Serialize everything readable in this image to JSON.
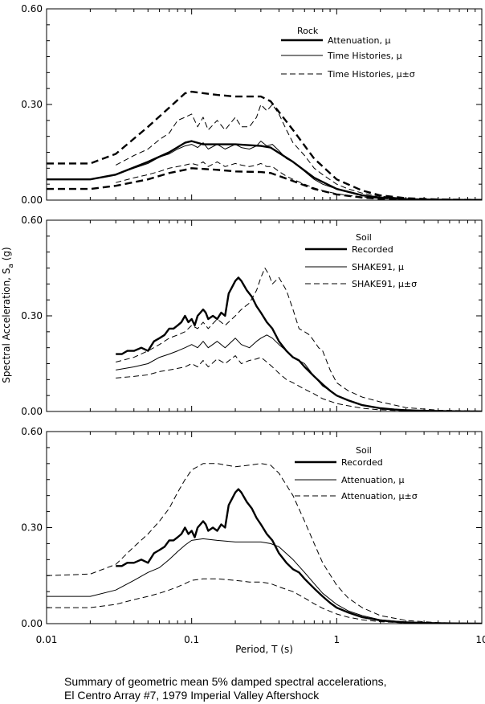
{
  "chart_data": [
    {
      "type": "line",
      "x_scale": "log",
      "xlim": [
        0.01,
        10
      ],
      "ylim": [
        0,
        0.6
      ],
      "yticks": [
        "0.00",
        "0.30",
        "0.60"
      ],
      "legend": {
        "heading": "Rock",
        "placement": "top-right",
        "entries": [
          "Attenuation, μ",
          "Time Histories, μ",
          "Time Histories, μ±σ"
        ]
      },
      "series": [
        {
          "name": "Attenuation, μ",
          "style": "thick-solid",
          "x": [
            0.01,
            0.02,
            0.03,
            0.05,
            0.07,
            0.09,
            0.1,
            0.12,
            0.15,
            0.2,
            0.3,
            0.35,
            0.5,
            0.7,
            1,
            1.5,
            2,
            3,
            5,
            10
          ],
          "y": [
            0.065,
            0.065,
            0.08,
            0.12,
            0.15,
            0.18,
            0.185,
            0.175,
            0.175,
            0.175,
            0.17,
            0.165,
            0.12,
            0.07,
            0.035,
            0.015,
            0.008,
            0.003,
            0.001,
            0.0003
          ]
        },
        {
          "name": "Attenuation, μ±σ (upper)",
          "style": "thick-dashed",
          "x": [
            0.01,
            0.02,
            0.03,
            0.05,
            0.07,
            0.09,
            0.1,
            0.15,
            0.2,
            0.3,
            0.35,
            0.5,
            0.7,
            1,
            1.5,
            2,
            3,
            5,
            10
          ],
          "y": [
            0.115,
            0.115,
            0.145,
            0.23,
            0.29,
            0.335,
            0.34,
            0.33,
            0.325,
            0.325,
            0.31,
            0.22,
            0.13,
            0.065,
            0.03,
            0.015,
            0.006,
            0.002,
            0.0005
          ]
        },
        {
          "name": "Attenuation, μ±σ (lower)",
          "style": "thick-dashed",
          "x": [
            0.01,
            0.02,
            0.03,
            0.05,
            0.07,
            0.09,
            0.1,
            0.15,
            0.2,
            0.3,
            0.35,
            0.5,
            0.7,
            1,
            1.5,
            2,
            3,
            5,
            10
          ],
          "y": [
            0.035,
            0.035,
            0.045,
            0.065,
            0.085,
            0.095,
            0.1,
            0.095,
            0.09,
            0.088,
            0.085,
            0.06,
            0.035,
            0.018,
            0.008,
            0.004,
            0.0015,
            0.0005,
            0.0001
          ]
        },
        {
          "name": "Time Histories, μ",
          "style": "thin-solid",
          "x": [
            0.03,
            0.04,
            0.05,
            0.06,
            0.07,
            0.08,
            0.09,
            0.1,
            0.11,
            0.12,
            0.13,
            0.15,
            0.17,
            0.2,
            0.22,
            0.25,
            0.28,
            0.3,
            0.33,
            0.36,
            0.4,
            0.45,
            0.5,
            0.6,
            0.7,
            0.8,
            1,
            1.2,
            1.5,
            2,
            3
          ],
          "y": [
            0.08,
            0.1,
            0.115,
            0.135,
            0.145,
            0.16,
            0.17,
            0.175,
            0.165,
            0.18,
            0.16,
            0.175,
            0.16,
            0.175,
            0.165,
            0.16,
            0.17,
            0.185,
            0.17,
            0.175,
            0.155,
            0.13,
            0.12,
            0.09,
            0.065,
            0.05,
            0.035,
            0.025,
            0.015,
            0.008,
            0.003
          ]
        },
        {
          "name": "Time Histories, μ±σ (upper)",
          "style": "thin-dashed",
          "x": [
            0.03,
            0.04,
            0.05,
            0.06,
            0.07,
            0.08,
            0.09,
            0.1,
            0.11,
            0.12,
            0.13,
            0.15,
            0.17,
            0.2,
            0.22,
            0.25,
            0.28,
            0.3,
            0.33,
            0.36,
            0.4,
            0.45,
            0.5,
            0.6,
            0.7,
            0.8,
            1,
            1.2,
            1.5,
            2,
            3
          ],
          "y": [
            0.11,
            0.14,
            0.16,
            0.19,
            0.21,
            0.25,
            0.26,
            0.27,
            0.23,
            0.26,
            0.22,
            0.25,
            0.22,
            0.26,
            0.23,
            0.23,
            0.26,
            0.3,
            0.28,
            0.3,
            0.27,
            0.22,
            0.18,
            0.14,
            0.1,
            0.08,
            0.05,
            0.035,
            0.022,
            0.012,
            0.005
          ]
        },
        {
          "name": "Time Histories, μ±σ (lower)",
          "style": "thin-dashed",
          "x": [
            0.03,
            0.04,
            0.05,
            0.06,
            0.07,
            0.08,
            0.09,
            0.1,
            0.11,
            0.12,
            0.13,
            0.15,
            0.17,
            0.2,
            0.22,
            0.25,
            0.28,
            0.3,
            0.33,
            0.36,
            0.4,
            0.45,
            0.5,
            0.6,
            0.7,
            0.8,
            1,
            1.2,
            1.5,
            2,
            3
          ],
          "y": [
            0.055,
            0.07,
            0.08,
            0.09,
            0.1,
            0.105,
            0.11,
            0.115,
            0.11,
            0.12,
            0.105,
            0.12,
            0.105,
            0.115,
            0.11,
            0.105,
            0.11,
            0.115,
            0.105,
            0.105,
            0.09,
            0.075,
            0.065,
            0.05,
            0.038,
            0.03,
            0.02,
            0.015,
            0.01,
            0.005,
            0.002
          ]
        }
      ]
    },
    {
      "type": "line",
      "x_scale": "log",
      "xlim": [
        0.01,
        10
      ],
      "ylim": [
        0,
        0.6
      ],
      "yticks": [
        "0.00",
        "0.30",
        "0.60"
      ],
      "legend": {
        "heading": "Soil",
        "placement": "top-right",
        "entries": [
          "Recorded",
          "SHAKE91, μ",
          "SHAKE91, μ±σ"
        ]
      },
      "series": [
        {
          "name": "Recorded",
          "style": "thick-solid",
          "x": [
            0.03,
            0.033,
            0.036,
            0.04,
            0.045,
            0.05,
            0.055,
            0.06,
            0.065,
            0.07,
            0.075,
            0.08,
            0.085,
            0.09,
            0.095,
            0.1,
            0.105,
            0.11,
            0.115,
            0.12,
            0.125,
            0.13,
            0.14,
            0.15,
            0.16,
            0.17,
            0.18,
            0.19,
            0.2,
            0.21,
            0.22,
            0.24,
            0.26,
            0.28,
            0.3,
            0.33,
            0.36,
            0.4,
            0.45,
            0.5,
            0.55,
            0.6,
            0.7,
            0.8,
            0.9,
            1,
            1.2,
            1.5,
            2,
            2.5,
            3,
            4,
            5,
            7,
            10
          ],
          "y": [
            0.18,
            0.18,
            0.19,
            0.19,
            0.2,
            0.19,
            0.22,
            0.23,
            0.24,
            0.26,
            0.26,
            0.27,
            0.28,
            0.3,
            0.28,
            0.29,
            0.27,
            0.3,
            0.31,
            0.32,
            0.31,
            0.29,
            0.3,
            0.29,
            0.31,
            0.3,
            0.37,
            0.39,
            0.41,
            0.42,
            0.41,
            0.38,
            0.36,
            0.33,
            0.31,
            0.28,
            0.26,
            0.22,
            0.19,
            0.17,
            0.16,
            0.14,
            0.11,
            0.085,
            0.065,
            0.05,
            0.035,
            0.02,
            0.01,
            0.006,
            0.004,
            0.002,
            0.0012,
            0.0005,
            0.0002
          ]
        },
        {
          "name": "SHAKE91, μ",
          "style": "thin-solid",
          "x": [
            0.03,
            0.04,
            0.05,
            0.06,
            0.07,
            0.08,
            0.09,
            0.1,
            0.11,
            0.12,
            0.13,
            0.15,
            0.17,
            0.2,
            0.22,
            0.25,
            0.28,
            0.3,
            0.33,
            0.36,
            0.4,
            0.45,
            0.5,
            0.55,
            0.6,
            0.7,
            0.8,
            0.9,
            1,
            1.2,
            1.5,
            2,
            3,
            5,
            10
          ],
          "y": [
            0.13,
            0.14,
            0.15,
            0.17,
            0.18,
            0.19,
            0.2,
            0.21,
            0.2,
            0.22,
            0.2,
            0.22,
            0.2,
            0.23,
            0.21,
            0.2,
            0.22,
            0.23,
            0.24,
            0.23,
            0.21,
            0.19,
            0.17,
            0.16,
            0.15,
            0.11,
            0.08,
            0.065,
            0.05,
            0.035,
            0.02,
            0.01,
            0.003,
            0.001,
            0.0003
          ]
        },
        {
          "name": "SHAKE91, μ±σ (upper)",
          "style": "thin-dashed",
          "x": [
            0.03,
            0.04,
            0.05,
            0.06,
            0.07,
            0.08,
            0.09,
            0.1,
            0.11,
            0.12,
            0.13,
            0.15,
            0.17,
            0.2,
            0.22,
            0.25,
            0.28,
            0.3,
            0.32,
            0.34,
            0.36,
            0.4,
            0.45,
            0.5,
            0.55,
            0.6,
            0.65,
            0.7,
            0.75,
            0.8,
            0.9,
            1,
            1.2,
            1.5,
            2,
            3,
            5,
            10
          ],
          "y": [
            0.155,
            0.17,
            0.19,
            0.21,
            0.23,
            0.24,
            0.25,
            0.27,
            0.26,
            0.28,
            0.26,
            0.29,
            0.27,
            0.3,
            0.32,
            0.34,
            0.38,
            0.42,
            0.45,
            0.43,
            0.4,
            0.42,
            0.38,
            0.32,
            0.26,
            0.25,
            0.24,
            0.22,
            0.2,
            0.19,
            0.13,
            0.09,
            0.065,
            0.045,
            0.03,
            0.012,
            0.004,
            0.001
          ]
        },
        {
          "name": "SHAKE91, μ±σ (lower)",
          "style": "thin-dashed",
          "x": [
            0.03,
            0.04,
            0.05,
            0.06,
            0.07,
            0.08,
            0.09,
            0.1,
            0.11,
            0.12,
            0.13,
            0.15,
            0.17,
            0.2,
            0.22,
            0.25,
            0.28,
            0.3,
            0.33,
            0.36,
            0.4,
            0.45,
            0.5,
            0.6,
            0.7,
            0.8,
            1,
            1.2,
            1.5,
            2,
            3,
            5,
            10
          ],
          "y": [
            0.105,
            0.11,
            0.115,
            0.125,
            0.13,
            0.135,
            0.14,
            0.15,
            0.14,
            0.16,
            0.14,
            0.165,
            0.15,
            0.175,
            0.15,
            0.16,
            0.165,
            0.17,
            0.155,
            0.14,
            0.12,
            0.1,
            0.09,
            0.07,
            0.055,
            0.04,
            0.025,
            0.018,
            0.01,
            0.005,
            0.002,
            0.0008,
            0.0002
          ]
        }
      ]
    },
    {
      "type": "line",
      "x_scale": "log",
      "xlim": [
        0.01,
        10
      ],
      "ylim": [
        0,
        0.6
      ],
      "xticks": [
        "0.01",
        "0.1",
        "1",
        "10"
      ],
      "yticks": [
        "0.00",
        "0.30",
        "0.60"
      ],
      "legend": {
        "heading": "Soil",
        "placement": "top-right",
        "entries": [
          "Recorded",
          "Attenuation, μ",
          "Attenuation, μ±σ"
        ]
      },
      "series": [
        {
          "name": "Recorded",
          "style": "thick-solid",
          "x": [
            0.03,
            0.033,
            0.036,
            0.04,
            0.045,
            0.05,
            0.055,
            0.06,
            0.065,
            0.07,
            0.075,
            0.08,
            0.085,
            0.09,
            0.095,
            0.1,
            0.105,
            0.11,
            0.115,
            0.12,
            0.125,
            0.13,
            0.14,
            0.15,
            0.16,
            0.17,
            0.18,
            0.19,
            0.2,
            0.21,
            0.22,
            0.24,
            0.26,
            0.28,
            0.3,
            0.33,
            0.36,
            0.4,
            0.45,
            0.5,
            0.55,
            0.6,
            0.7,
            0.8,
            0.9,
            1,
            1.2,
            1.5,
            2,
            2.5,
            3,
            4,
            5,
            7,
            10
          ],
          "y": [
            0.18,
            0.18,
            0.19,
            0.19,
            0.2,
            0.19,
            0.22,
            0.23,
            0.24,
            0.26,
            0.26,
            0.27,
            0.28,
            0.3,
            0.28,
            0.29,
            0.27,
            0.3,
            0.31,
            0.32,
            0.31,
            0.29,
            0.3,
            0.29,
            0.31,
            0.3,
            0.37,
            0.39,
            0.41,
            0.42,
            0.41,
            0.38,
            0.36,
            0.33,
            0.31,
            0.28,
            0.26,
            0.22,
            0.19,
            0.17,
            0.16,
            0.14,
            0.11,
            0.085,
            0.065,
            0.05,
            0.035,
            0.02,
            0.01,
            0.006,
            0.004,
            0.002,
            0.0012,
            0.0005,
            0.0002
          ]
        },
        {
          "name": "Attenuation, μ",
          "style": "thin-solid",
          "x": [
            0.01,
            0.02,
            0.03,
            0.04,
            0.05,
            0.06,
            0.07,
            0.08,
            0.09,
            0.1,
            0.12,
            0.15,
            0.2,
            0.25,
            0.3,
            0.35,
            0.4,
            0.5,
            0.6,
            0.7,
            0.8,
            1,
            1.2,
            1.5,
            2,
            3,
            5,
            10
          ],
          "y": [
            0.085,
            0.085,
            0.105,
            0.135,
            0.16,
            0.175,
            0.2,
            0.225,
            0.245,
            0.26,
            0.265,
            0.26,
            0.255,
            0.255,
            0.255,
            0.25,
            0.24,
            0.2,
            0.16,
            0.125,
            0.095,
            0.06,
            0.04,
            0.025,
            0.012,
            0.005,
            0.0015,
            0.0004
          ]
        },
        {
          "name": "Attenuation, μ±σ (upper)",
          "style": "thin-dashed",
          "x": [
            0.01,
            0.02,
            0.03,
            0.04,
            0.05,
            0.06,
            0.07,
            0.08,
            0.09,
            0.1,
            0.12,
            0.15,
            0.2,
            0.25,
            0.3,
            0.35,
            0.4,
            0.5,
            0.6,
            0.7,
            0.8,
            1,
            1.2,
            1.5,
            2,
            3,
            5,
            10
          ],
          "y": [
            0.15,
            0.155,
            0.185,
            0.24,
            0.28,
            0.32,
            0.36,
            0.41,
            0.45,
            0.48,
            0.5,
            0.5,
            0.49,
            0.495,
            0.5,
            0.495,
            0.47,
            0.4,
            0.32,
            0.25,
            0.19,
            0.12,
            0.08,
            0.05,
            0.025,
            0.01,
            0.003,
            0.0008
          ]
        },
        {
          "name": "Attenuation, μ±σ (lower)",
          "style": "thin-dashed",
          "x": [
            0.01,
            0.02,
            0.03,
            0.04,
            0.05,
            0.06,
            0.07,
            0.08,
            0.09,
            0.1,
            0.12,
            0.15,
            0.2,
            0.25,
            0.3,
            0.35,
            0.4,
            0.5,
            0.6,
            0.7,
            0.8,
            1,
            1.2,
            1.5,
            2,
            3,
            5,
            10
          ],
          "y": [
            0.05,
            0.05,
            0.06,
            0.075,
            0.085,
            0.095,
            0.105,
            0.115,
            0.125,
            0.135,
            0.14,
            0.14,
            0.135,
            0.13,
            0.13,
            0.125,
            0.115,
            0.1,
            0.08,
            0.062,
            0.048,
            0.03,
            0.02,
            0.012,
            0.006,
            0.002,
            0.0007,
            0.0002
          ]
        }
      ]
    }
  ],
  "axes": {
    "ylabel": "Spectral Acceleration, S",
    "ylabel_sub": "a",
    "ylabel_unit": " (g)",
    "xlabel": "Period, T (s)"
  },
  "caption": {
    "line1": "Summary of geometric mean 5% damped spectral accelerations,",
    "line2": "El Centro Array #7, 1979 Imperial Valley Aftershock"
  }
}
